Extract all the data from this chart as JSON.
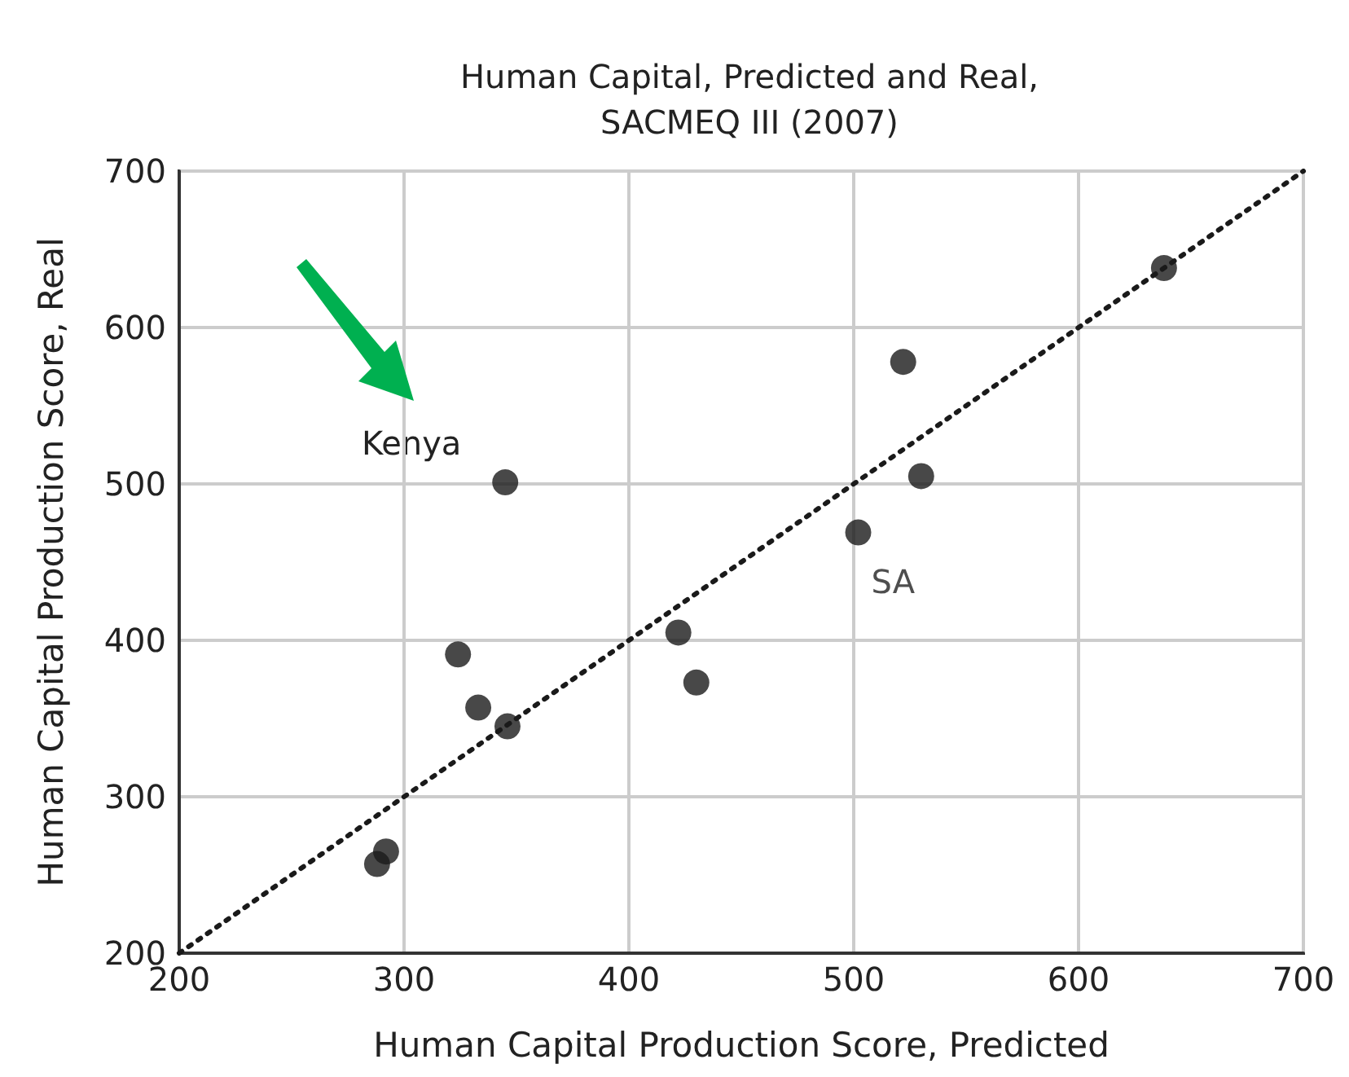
{
  "chart_data": {
    "type": "scatter",
    "title": "Human Capital, Predicted and Real,\nSACMEQ III (2007)",
    "xlabel": "Human Capital Production Score, Predicted",
    "ylabel": "Human Capital Production Score, Real",
    "series": [
      {
        "color": "#1a1a1a",
        "marker": "circle",
        "x": [
          288,
          292,
          324,
          333,
          346,
          345,
          422,
          430,
          502,
          522,
          530,
          638
        ],
        "values": [
          257,
          265,
          391,
          357,
          345,
          501,
          405,
          373,
          469,
          578,
          505,
          638
        ]
      },
      {
        "type": "line",
        "color": "#1a1a1a",
        "marker": "none",
        "line_style": "dotted",
        "x": [
          200,
          700
        ],
        "values": [
          200,
          700
        ]
      }
    ],
    "annotations": [
      "Kenya",
      {
        "text": "SA",
        "x": 502,
        "y": 469
      }
    ],
    "xlim": [
      200,
      700
    ],
    "xticks": [
      200,
      300,
      400,
      500,
      600,
      700
    ],
    "ylim": [
      200,
      700
    ],
    "yticks": [
      200,
      300,
      400,
      500,
      600,
      700
    ],
    "grid": true
  }
}
